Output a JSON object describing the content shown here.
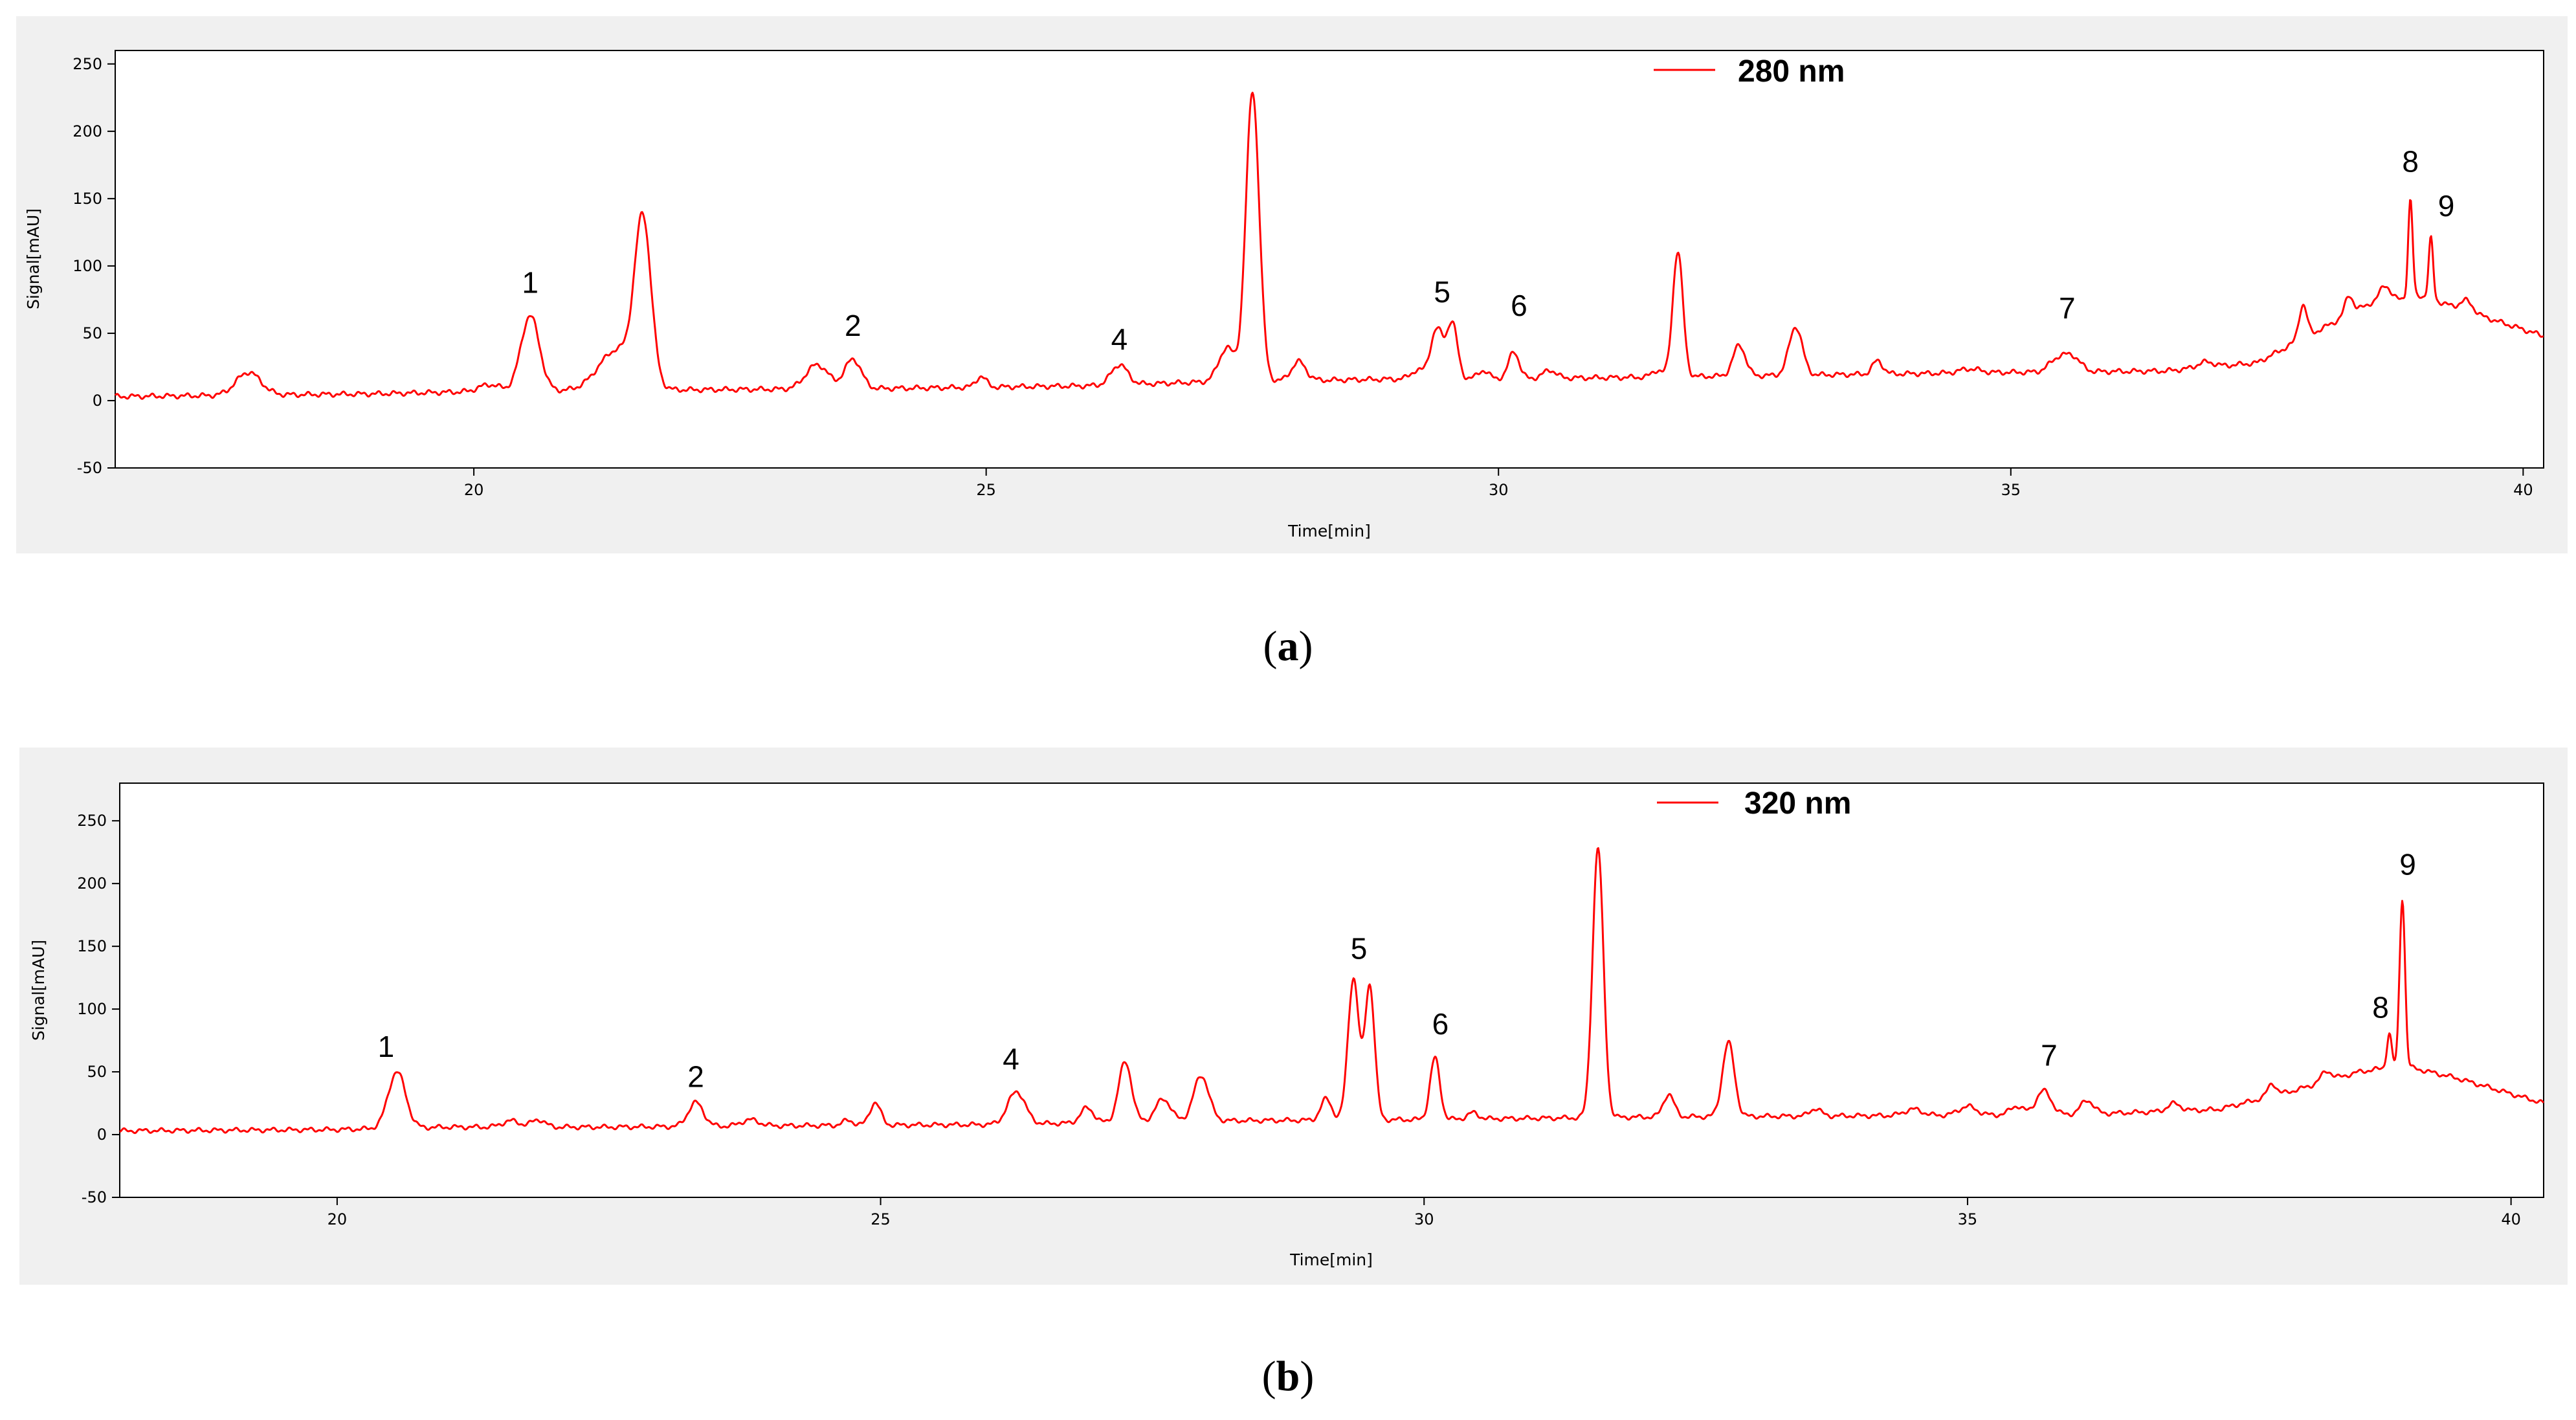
{
  "chart_data": [
    {
      "type": "line",
      "caption": {
        "open": "(",
        "letter": "a",
        "close": ")"
      },
      "xlabel": "Time[min]",
      "ylabel": "Signal[mAU]",
      "xlim": [
        16.5,
        40.2
      ],
      "ylim": [
        -50,
        260
      ],
      "x_ticks": [
        20,
        25,
        30,
        35,
        40
      ],
      "y_ticks": [
        -50,
        0,
        50,
        100,
        150,
        200,
        250
      ],
      "legend": {
        "label": "280 nm",
        "position": "top-center"
      },
      "series": [
        {
          "name": "280 nm",
          "color": "#ff0000",
          "baseline": [
            [
              16.5,
              3
            ],
            [
              19,
              5
            ],
            [
              20.2,
              7
            ],
            [
              22,
              8
            ],
            [
              24,
              9
            ],
            [
              26,
              11
            ],
            [
              27.2,
              14
            ],
            [
              29,
              16
            ],
            [
              31,
              17
            ],
            [
              33,
              19
            ],
            [
              35,
              21
            ],
            [
              36.5,
              22
            ],
            [
              37.4,
              28
            ],
            [
              38,
              52
            ],
            [
              38.5,
              72
            ],
            [
              39,
              78
            ],
            [
              39.5,
              65
            ],
            [
              40.2,
              48
            ]
          ],
          "peaks": [
            [
              17.8,
              17,
              0.12
            ],
            [
              20.15,
              5,
              0.1
            ],
            [
              20.55,
              56,
              0.09
            ],
            [
              21.4,
              30,
              0.18
            ],
            [
              21.65,
              120,
              0.08
            ],
            [
              23.35,
              18,
              0.11
            ],
            [
              23.7,
              22,
              0.08
            ],
            [
              24.95,
              8,
              0.05
            ],
            [
              26.3,
              15,
              0.08
            ],
            [
              27.35,
              25,
              0.08
            ],
            [
              27.6,
              215,
              0.065
            ],
            [
              28.05,
              14,
              0.07
            ],
            [
              29.2,
              6,
              0.06
            ],
            [
              29.4,
              37,
              0.065
            ],
            [
              29.55,
              40,
              0.05
            ],
            [
              29.85,
              6,
              0.05
            ],
            [
              30.15,
              20,
              0.05
            ],
            [
              30.5,
              6,
              0.06
            ],
            [
              31.55,
              5,
              0.05
            ],
            [
              31.75,
              93,
              0.05
            ],
            [
              32.35,
              23,
              0.06
            ],
            [
              32.9,
              36,
              0.065
            ],
            [
              33.7,
              10,
              0.05
            ],
            [
              34.6,
              3,
              0.1
            ],
            [
              35.45,
              9,
              0.08
            ],
            [
              35.6,
              11,
              0.08
            ],
            [
              36.9,
              4,
              0.08
            ],
            [
              37.85,
              25,
              0.04
            ],
            [
              38.3,
              14,
              0.04
            ],
            [
              38.65,
              12,
              0.05
            ],
            [
              38.9,
              72,
              0.022
            ],
            [
              39.1,
              45,
              0.022
            ],
            [
              39.45,
              8,
              0.06
            ]
          ]
        }
      ],
      "annotations": [
        {
          "label": "1",
          "x": 20.55,
          "y": 80
        },
        {
          "label": "2",
          "x": 23.7,
          "y": 48
        },
        {
          "label": "4",
          "x": 26.3,
          "y": 38
        },
        {
          "label": "5",
          "x": 29.45,
          "y": 73
        },
        {
          "label": "6",
          "x": 30.2,
          "y": 63
        },
        {
          "label": "7",
          "x": 35.55,
          "y": 61
        },
        {
          "label": "8",
          "x": 38.9,
          "y": 170
        },
        {
          "label": "9",
          "x": 39.25,
          "y": 137
        }
      ]
    },
    {
      "type": "line",
      "caption": {
        "open": "(",
        "letter": "b",
        "close": ")"
      },
      "xlabel": "Time[min]",
      "ylabel": "Signal[mAU]",
      "xlim": [
        18.0,
        40.3
      ],
      "ylim": [
        -50,
        280
      ],
      "x_ticks": [
        20,
        25,
        30,
        35,
        40
      ],
      "y_ticks": [
        -50,
        0,
        50,
        100,
        150,
        200,
        250
      ],
      "legend": {
        "label": "320 nm",
        "position": "top-center"
      },
      "series": [
        {
          "name": "320 nm",
          "color": "#ff0000",
          "baseline": [
            [
              18,
              3
            ],
            [
              20,
              4
            ],
            [
              21,
              6
            ],
            [
              22.5,
              6
            ],
            [
              24,
              7
            ],
            [
              26,
              8
            ],
            [
              28,
              11
            ],
            [
              30,
              12
            ],
            [
              32,
              14
            ],
            [
              34,
              15
            ],
            [
              36,
              16
            ],
            [
              37.3,
              20
            ],
            [
              38,
              35
            ],
            [
              38.6,
              50
            ],
            [
              39,
              55
            ],
            [
              39.5,
              45
            ],
            [
              40.3,
              25
            ]
          ],
          "peaks": [
            [
              20.55,
              45,
              0.08
            ],
            [
              21.6,
              5,
              0.08
            ],
            [
              21.85,
              6,
              0.06
            ],
            [
              23.3,
              19,
              0.07
            ],
            [
              23.8,
              5,
              0.08
            ],
            [
              24.7,
              4,
              0.05
            ],
            [
              24.95,
              18,
              0.05
            ],
            [
              26.25,
              26,
              0.08
            ],
            [
              26.9,
              12,
              0.06
            ],
            [
              27.25,
              48,
              0.06
            ],
            [
              27.6,
              18,
              0.07
            ],
            [
              27.95,
              36,
              0.07
            ],
            [
              29.1,
              17,
              0.05
            ],
            [
              29.35,
              113,
              0.05
            ],
            [
              29.5,
              107,
              0.045
            ],
            [
              30.1,
              49,
              0.045
            ],
            [
              30.45,
              5,
              0.05
            ],
            [
              31.6,
              215,
              0.05
            ],
            [
              32.25,
              18,
              0.05
            ],
            [
              32.8,
              59,
              0.055
            ],
            [
              33.6,
              6,
              0.05
            ],
            [
              34.5,
              5,
              0.08
            ],
            [
              35.0,
              7,
              0.08
            ],
            [
              35.45,
              7,
              0.06
            ],
            [
              35.7,
              19,
              0.07
            ],
            [
              36.1,
              11,
              0.06
            ],
            [
              36.9,
              6,
              0.06
            ],
            [
              37.8,
              10,
              0.04
            ],
            [
              38.3,
              8,
              0.05
            ],
            [
              38.88,
              27,
              0.022
            ],
            [
              39.0,
              133,
              0.025
            ]
          ]
        }
      ],
      "annotations": [
        {
          "label": "1",
          "x": 20.45,
          "y": 62
        },
        {
          "label": "2",
          "x": 23.3,
          "y": 38
        },
        {
          "label": "4",
          "x": 26.2,
          "y": 52
        },
        {
          "label": "5",
          "x": 29.4,
          "y": 140
        },
        {
          "label": "6",
          "x": 30.15,
          "y": 80
        },
        {
          "label": "7",
          "x": 35.75,
          "y": 55
        },
        {
          "label": "8",
          "x": 38.8,
          "y": 93
        },
        {
          "label": "9",
          "x": 39.05,
          "y": 207
        }
      ]
    }
  ]
}
